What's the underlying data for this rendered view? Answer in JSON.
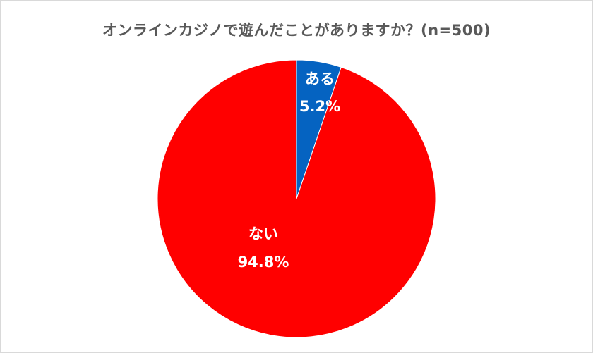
{
  "chart_data": {
    "type": "pie",
    "title": "オンラインカジノで遊んだことがありますか？(n=500)",
    "slices": [
      {
        "label": "ある",
        "value": 5.2,
        "display": "5.2%",
        "color": "#0563C1"
      },
      {
        "label": "ない",
        "value": 94.8,
        "display": "94.8%",
        "color": "#FF0000"
      }
    ],
    "start_angle_deg": 0,
    "direction": "clockwise",
    "legend": "none"
  }
}
